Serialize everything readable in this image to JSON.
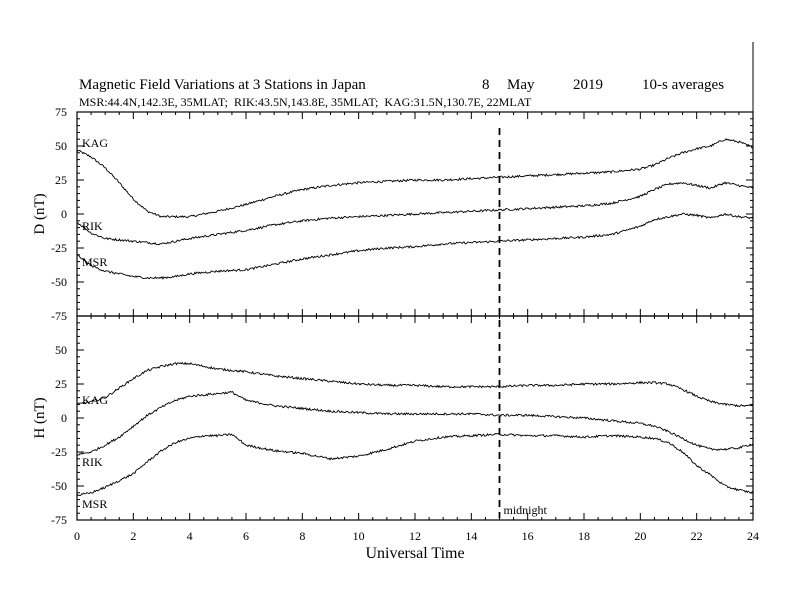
{
  "header": {
    "title": "Magnetic Field Variations at 3 Stations in Japan",
    "day": "8",
    "month": "May",
    "year": "2019",
    "averaging": "10-s averages",
    "stations": "MSR:44.4N,142.3E, 35MLAT;  RIK:43.5N,143.8E, 35MLAT;  KAG:31.5N,130.7E, 22MLAT"
  },
  "chart_data": [
    {
      "type": "line",
      "panel": "top",
      "ylabel": "D (nT)",
      "xlabel": "Universal Time",
      "xlim": [
        0,
        24
      ],
      "ylim": [
        -75,
        75
      ],
      "xticks": [
        0,
        2,
        4,
        6,
        8,
        10,
        12,
        14,
        16,
        18,
        20,
        22,
        24
      ],
      "yticks": [
        -75,
        -50,
        -25,
        0,
        25,
        50,
        75
      ],
      "series": [
        {
          "name": "KAG",
          "x": [
            0,
            0.5,
            1,
            1.5,
            2,
            2.5,
            3,
            3.5,
            4,
            5,
            6,
            7,
            8,
            9,
            10,
            11,
            12,
            13,
            14,
            15,
            16,
            17,
            18,
            19,
            20,
            20.5,
            21,
            21.5,
            22,
            22.5,
            23,
            23.5,
            24
          ],
          "values": [
            47,
            42,
            34,
            23,
            11,
            2,
            -2,
            -2,
            -2,
            2,
            7,
            13,
            18,
            21,
            23,
            24,
            25,
            25,
            26,
            27,
            28,
            29,
            30,
            31,
            33,
            36,
            41,
            45,
            48,
            50,
            55,
            53,
            49
          ]
        },
        {
          "name": "RIK",
          "x": [
            0,
            0.5,
            1,
            1.5,
            2,
            2.5,
            3,
            3.5,
            4,
            5,
            6,
            7,
            8,
            9,
            10,
            11,
            12,
            13,
            14,
            15,
            16,
            17,
            18,
            19,
            20,
            20.5,
            21,
            21.5,
            22,
            22.5,
            23,
            23.5,
            24
          ],
          "values": [
            -6,
            -14,
            -18,
            -19,
            -20,
            -21,
            -22,
            -20,
            -18,
            -15,
            -12,
            -8,
            -5,
            -3,
            -2,
            -1,
            0,
            1,
            2,
            3,
            4,
            5,
            6,
            8,
            13,
            18,
            22,
            23,
            21,
            19,
            23,
            21,
            19
          ]
        },
        {
          "name": "MSR",
          "x": [
            0,
            0.5,
            1,
            1.5,
            2,
            2.5,
            3,
            3.5,
            4,
            5,
            6,
            7,
            8,
            9,
            10,
            11,
            12,
            13,
            14,
            15,
            16,
            17,
            18,
            19,
            20,
            20.5,
            21,
            21.5,
            22,
            22.5,
            23,
            23.5,
            24
          ],
          "values": [
            -30,
            -38,
            -42,
            -44,
            -46,
            -47,
            -47,
            -46,
            -44,
            -42,
            -41,
            -37,
            -33,
            -30,
            -27,
            -25,
            -24,
            -22,
            -21,
            -20,
            -19,
            -18,
            -17,
            -15,
            -9,
            -4,
            -2,
            0,
            -1,
            -3,
            0,
            -2,
            -3
          ]
        }
      ]
    },
    {
      "type": "line",
      "panel": "bottom",
      "ylabel": "H (nT)",
      "xlabel": "Universal Time",
      "xlim": [
        0,
        24
      ],
      "ylim": [
        -75,
        75
      ],
      "xticks": [
        0,
        2,
        4,
        6,
        8,
        10,
        12,
        14,
        16,
        18,
        20,
        22,
        24
      ],
      "yticks": [
        -75,
        -50,
        -25,
        0,
        25,
        50,
        75
      ],
      "series": [
        {
          "name": "KAG",
          "x": [
            0,
            0.5,
            1,
            1.5,
            2,
            2.5,
            3,
            3.5,
            4,
            5,
            6,
            7,
            8,
            9,
            10,
            11,
            12,
            13,
            14,
            15,
            16,
            17,
            18,
            19,
            20,
            20.5,
            21,
            21.5,
            22,
            22.5,
            23,
            23.5,
            24
          ],
          "values": [
            10,
            12,
            15,
            22,
            29,
            35,
            38,
            40,
            40,
            36,
            34,
            31,
            29,
            27,
            25,
            24,
            24,
            23,
            23,
            23,
            24,
            24,
            25,
            25,
            26,
            26,
            25,
            21,
            16,
            12,
            10,
            9,
            9
          ]
        },
        {
          "name": "RIK",
          "x": [
            0,
            0.5,
            1,
            1.5,
            2,
            2.5,
            3,
            3.5,
            4,
            5,
            5.5,
            6,
            7,
            8,
            9,
            10,
            11,
            12,
            13,
            14,
            15,
            16,
            17,
            18,
            19,
            20,
            20.5,
            21,
            21.5,
            22,
            22.5,
            23,
            23.5,
            24
          ],
          "values": [
            -27,
            -25,
            -20,
            -14,
            -6,
            2,
            8,
            13,
            16,
            18,
            19,
            13,
            9,
            7,
            5,
            4,
            3,
            3,
            3,
            3,
            2,
            2,
            1,
            0,
            -2,
            -4,
            -6,
            -10,
            -15,
            -20,
            -23,
            -23,
            -22,
            -19
          ]
        },
        {
          "name": "MSR",
          "x": [
            0,
            0.5,
            1,
            1.5,
            2,
            2.5,
            3,
            3.5,
            4,
            4.5,
            5,
            5.5,
            6,
            7,
            8,
            9,
            10,
            11,
            12,
            13,
            14,
            15,
            16,
            17,
            18,
            19,
            20,
            20.5,
            21,
            21.5,
            22,
            22.5,
            23,
            23.5,
            24
          ],
          "values": [
            -57,
            -55,
            -51,
            -46,
            -41,
            -32,
            -24,
            -18,
            -15,
            -13,
            -13,
            -12,
            -20,
            -24,
            -26,
            -30,
            -28,
            -23,
            -17,
            -14,
            -13,
            -12,
            -13,
            -13,
            -14,
            -13,
            -14,
            -15,
            -18,
            -25,
            -35,
            -42,
            -50,
            -53,
            -55
          ]
        }
      ]
    }
  ],
  "annotations": {
    "midnight_ut": 15,
    "midnight_label": "midnight"
  },
  "colors": {
    "trace": "#000000",
    "background": "#ffffff"
  }
}
